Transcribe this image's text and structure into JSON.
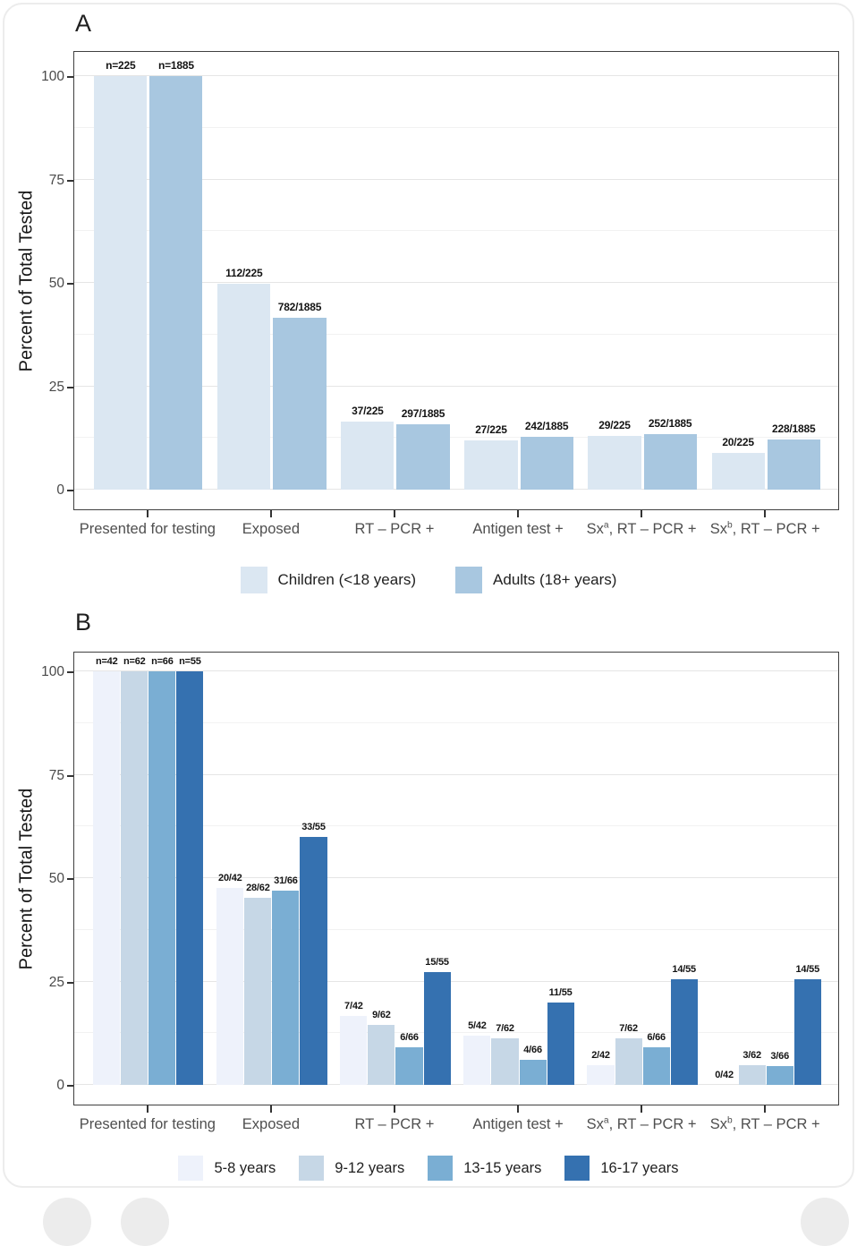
{
  "figure": {
    "y_axis_title": "Percent of Total Tested"
  },
  "chart_data": [
    {
      "type": "bar",
      "panel_label": "A",
      "ylabel": "Percent of Total Tested",
      "ylim": [
        0,
        100
      ],
      "yticks": [
        0,
        25,
        50,
        75,
        100
      ],
      "yticks_minor": [
        12.5,
        37.5,
        62.5,
        87.5
      ],
      "grid": "horizontal major+minor, light gray",
      "legend_position": "bottom",
      "categories": [
        "Presented for testing",
        "Exposed",
        "RT – PCR +",
        "Antigen test +",
        "Sx^a, RT – PCR +",
        "Sx^b, RT – PCR +"
      ],
      "series": [
        {
          "name": "Children (<18 years)",
          "color": "#dbe7f2",
          "values": [
            100,
            49.78,
            16.44,
            12.0,
            12.89,
            8.89
          ],
          "bar_labels": [
            "n=225",
            "112/225",
            "37/225",
            "27/225",
            "29/225",
            "20/225"
          ]
        },
        {
          "name": "Adults (18+ years)",
          "color": "#a8c7e0",
          "values": [
            100,
            41.49,
            15.76,
            12.84,
            13.37,
            12.1
          ],
          "bar_labels": [
            "n=1885",
            "782/1885",
            "297/1885",
            "242/1885",
            "252/1885",
            "228/1885"
          ]
        }
      ]
    },
    {
      "type": "bar",
      "panel_label": "B",
      "ylabel": "Percent of Total Tested",
      "ylim": [
        0,
        100
      ],
      "yticks": [
        0,
        25,
        50,
        75,
        100
      ],
      "yticks_minor": [
        12.5,
        37.5,
        62.5,
        87.5
      ],
      "grid": "horizontal major+minor, light gray",
      "legend_position": "bottom",
      "categories": [
        "Presented for testing",
        "Exposed",
        "RT – PCR +",
        "Antigen test +",
        "Sx^a, RT – PCR +",
        "Sx^b, RT – PCR +"
      ],
      "series": [
        {
          "name": "5-8 years",
          "color": "#eef2fb",
          "values": [
            100,
            47.62,
            16.67,
            11.9,
            4.76,
            0
          ],
          "bar_labels": [
            "n=42",
            "20/42",
            "7/42",
            "5/42",
            "2/42",
            "0/42"
          ]
        },
        {
          "name": "9-12 years",
          "color": "#c6d7e6",
          "values": [
            100,
            45.16,
            14.52,
            11.29,
            11.29,
            4.84
          ],
          "bar_labels": [
            "n=62",
            "28/62",
            "9/62",
            "7/62",
            "7/62",
            "3/62"
          ]
        },
        {
          "name": "13-15 years",
          "color": "#7aaed3",
          "values": [
            100,
            46.97,
            9.09,
            6.06,
            9.09,
            4.55
          ],
          "bar_labels": [
            "n=66",
            "31/66",
            "6/66",
            "4/66",
            "6/66",
            "3/66"
          ]
        },
        {
          "name": "16-17 years",
          "color": "#3571b0",
          "values": [
            100,
            60.0,
            27.27,
            20.0,
            25.45,
            25.45
          ],
          "bar_labels": [
            "n=55",
            "33/55",
            "15/55",
            "11/55",
            "14/55",
            "14/55"
          ]
        }
      ]
    }
  ]
}
